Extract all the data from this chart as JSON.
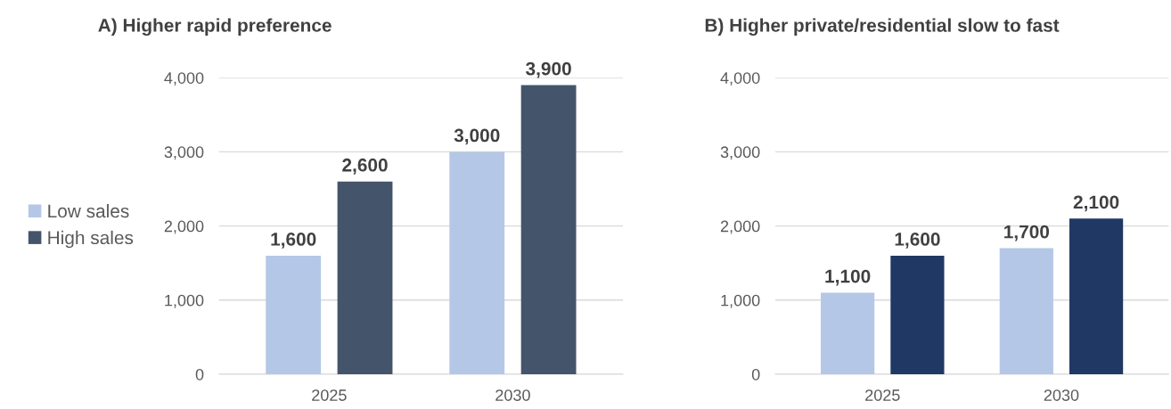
{
  "chart_data": [
    {
      "type": "bar",
      "title": "A) Higher rapid preference",
      "categories": [
        "2025",
        "2030"
      ],
      "series": [
        {
          "name": "Low sales",
          "color": "#b4c7e7",
          "values": [
            1600,
            3000
          ]
        },
        {
          "name": "High sales",
          "color": "#44546a",
          "values": [
            2600,
            3900
          ]
        }
      ],
      "ylim": [
        0,
        4000
      ],
      "yticks": [
        0,
        {
          "value": 1000,
          "label": "1,000"
        },
        {
          "value": 2000,
          "label": "2,000"
        },
        {
          "value": 3000,
          "label": "3,000"
        },
        {
          "value": 4000,
          "label": "4,000"
        }
      ],
      "grid": "y",
      "legend": "left",
      "value_labels": [
        [
          "1,600",
          "3,000"
        ],
        [
          "2,600",
          "3,900"
        ]
      ]
    },
    {
      "type": "bar",
      "title": "B) Higher private/residential slow to fast",
      "categories": [
        "2025",
        "2030"
      ],
      "series": [
        {
          "color": "#b4c7e7",
          "values": [
            1100,
            1700
          ]
        },
        {
          "color": "#203864",
          "values": [
            1600,
            2100
          ]
        }
      ],
      "ylim": [
        0,
        4000
      ],
      "yticks": [
        0,
        {
          "value": 1000,
          "label": "1,000"
        },
        {
          "value": 2000,
          "label": "2,000"
        },
        {
          "value": 3000,
          "label": "3,000"
        },
        {
          "value": 4000,
          "label": "4,000"
        }
      ],
      "grid": "y",
      "value_labels": [
        [
          "1,100",
          "1,700"
        ],
        [
          "1,600",
          "2,100"
        ]
      ]
    }
  ]
}
